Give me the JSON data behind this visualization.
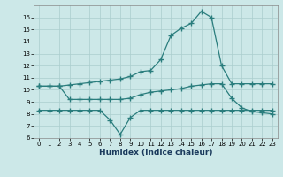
{
  "xlabel": "Humidex (Indice chaleur)",
  "x": [
    0,
    1,
    2,
    3,
    4,
    5,
    6,
    7,
    8,
    9,
    10,
    11,
    12,
    13,
    14,
    15,
    16,
    17,
    18,
    19,
    20,
    21,
    22,
    23
  ],
  "line1": [
    10.3,
    10.3,
    10.3,
    10.4,
    10.5,
    10.6,
    10.7,
    10.8,
    10.9,
    11.1,
    11.5,
    11.6,
    12.5,
    14.5,
    15.1,
    15.5,
    16.5,
    16.0,
    12.0,
    10.5,
    10.5,
    10.5,
    10.5,
    10.5
  ],
  "line2": [
    10.3,
    10.3,
    10.3,
    9.2,
    9.2,
    9.2,
    9.2,
    9.2,
    9.2,
    9.3,
    9.6,
    9.8,
    9.9,
    10.0,
    10.1,
    10.3,
    10.4,
    10.5,
    10.5,
    9.3,
    8.5,
    8.2,
    8.1,
    8.0
  ],
  "line3": [
    8.3,
    8.3,
    8.3,
    8.3,
    8.3,
    8.3,
    8.3,
    7.5,
    6.3,
    7.7,
    8.3,
    8.3,
    8.3,
    8.3,
    8.3,
    8.3,
    8.3,
    8.3,
    8.3,
    8.3,
    8.3,
    8.3,
    8.3,
    8.3
  ],
  "line_color": "#2a7d7d",
  "bg_color": "#cce8e8",
  "grid_color": "#aacece",
  "ylim": [
    6,
    17
  ],
  "yticks": [
    6,
    7,
    8,
    9,
    10,
    11,
    12,
    13,
    14,
    15,
    16
  ],
  "xlim": [
    -0.5,
    23.5
  ],
  "xlabel_color": "#1a3a5c",
  "xlabel_fontsize": 6.5,
  "tick_fontsize": 5.0
}
